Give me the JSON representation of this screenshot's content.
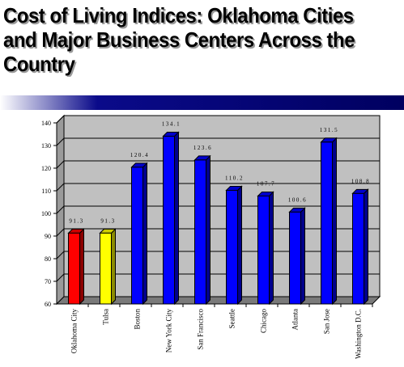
{
  "chart_data": {
    "type": "bar",
    "title": "Cost of Living Indices:  Oklahoma Cities and Major Business Centers Across the Country",
    "categories": [
      "Oklahoma City",
      "Tulsa",
      "Boston",
      "New York City",
      "San Francisco",
      "Seattle",
      "Chicago",
      "Atlanta",
      "San Jose",
      "Washington D.C."
    ],
    "values": [
      91.3,
      91.3,
      120.4,
      134.1,
      123.6,
      110.2,
      107.7,
      100.6,
      131.5,
      108.8
    ],
    "value_labels": [
      "91.3",
      "91.3",
      "120.4",
      "134.1",
      "123.6",
      "110.2",
      "107.7",
      "100.6",
      "131.5",
      "108.8"
    ],
    "bar_colors": [
      "#ff0000",
      "#ffff00",
      "#0000ff",
      "#0000ff",
      "#0000ff",
      "#0000ff",
      "#0000ff",
      "#0000ff",
      "#0000ff",
      "#0000ff"
    ],
    "xlabel": "",
    "ylabel": "",
    "ylim": [
      60,
      140
    ],
    "yticks": [
      60,
      70,
      80,
      90,
      100,
      110,
      120,
      130,
      140
    ],
    "grid": true,
    "legend": "none",
    "style": "3d"
  },
  "colors": {
    "plot_background": "#c0c0c0",
    "title_shadow": "#9a9a9a",
    "rule": "#000060"
  }
}
